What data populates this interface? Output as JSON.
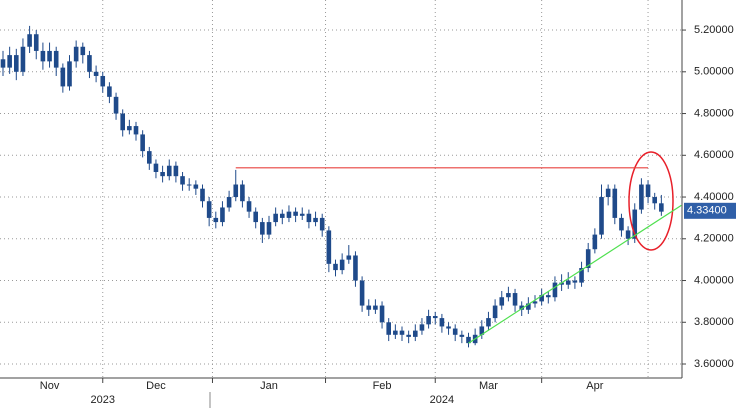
{
  "chart_data": {
    "type": "candlestick",
    "color": "#1f4a8a",
    "ylim": [
      3.533,
      5.344
    ],
    "yticks": [
      {
        "value": 3.6,
        "label": "3.60000"
      },
      {
        "value": 3.8,
        "label": "3.80000"
      },
      {
        "value": 4.0,
        "label": "4.00000"
      },
      {
        "value": 4.2,
        "label": "4.20000"
      },
      {
        "value": 4.4,
        "label": "4.40000"
      },
      {
        "value": 4.6,
        "label": "4.60000"
      },
      {
        "value": 4.8,
        "label": "4.80000"
      },
      {
        "value": 5.0,
        "label": "5.00000"
      },
      {
        "value": 5.2,
        "label": "5.20000"
      }
    ],
    "grid": true,
    "last_price": {
      "value": 4.334,
      "label": "4.33400",
      "color": "#2f5fa8"
    },
    "categories": [
      null,
      null,
      null,
      null,
      null,
      null,
      null,
      "Nov",
      null,
      null,
      null,
      null,
      null,
      null,
      null,
      null,
      null,
      null,
      null,
      null,
      null,
      null,
      null,
      "Dec",
      null,
      null,
      null,
      null,
      null,
      null,
      null,
      null,
      null,
      null,
      null,
      null,
      null,
      null,
      null,
      null,
      "Jan",
      null,
      null,
      null,
      null,
      null,
      null,
      null,
      null,
      null,
      null,
      null,
      null,
      null,
      null,
      null,
      null,
      "Feb",
      null,
      null,
      null,
      null,
      null,
      null,
      null,
      null,
      null,
      null,
      null,
      null,
      null,
      null,
      null,
      "Mar",
      null,
      null,
      null,
      null,
      null,
      null,
      null,
      null,
      null,
      null,
      null,
      null,
      null,
      null,
      null,
      "Apr",
      null,
      null,
      null,
      null,
      null,
      null,
      null,
      null,
      null,
      null
    ],
    "year_labels": [
      null,
      null,
      null,
      null,
      null,
      null,
      null,
      null,
      null,
      null,
      null,
      null,
      null,
      null,
      null,
      "2023",
      null,
      null,
      null,
      null,
      null,
      null,
      null,
      null,
      null,
      null,
      null,
      null,
      null,
      null,
      null,
      null,
      null,
      null,
      null,
      null,
      null,
      null,
      null,
      null,
      null,
      null,
      null,
      null,
      null,
      null,
      null,
      null,
      null,
      null,
      null,
      null,
      null,
      null,
      null,
      null,
      null,
      null,
      null,
      null,
      null,
      null,
      null,
      null,
      null,
      null,
      "2024",
      null,
      null,
      null,
      null,
      null,
      null,
      null,
      null,
      null,
      null,
      null,
      null,
      null,
      null,
      null,
      null,
      null,
      null,
      null,
      null,
      null,
      null,
      null,
      null,
      null,
      null,
      null,
      null,
      null,
      null,
      null,
      null,
      null
    ],
    "candles": [
      [
        5.06,
        5.1,
        4.98,
        5.02
      ],
      [
        5.02,
        5.12,
        4.99,
        5.08
      ],
      [
        5.08,
        5.11,
        4.96,
        5.0
      ],
      [
        5.0,
        5.16,
        4.98,
        5.12
      ],
      [
        5.12,
        5.22,
        5.09,
        5.18
      ],
      [
        5.18,
        5.2,
        5.06,
        5.1
      ],
      [
        5.1,
        5.14,
        5.01,
        5.05
      ],
      [
        5.05,
        5.14,
        5.02,
        5.1
      ],
      [
        5.1,
        5.12,
        4.98,
        5.02
      ],
      [
        5.02,
        5.04,
        4.9,
        4.93
      ],
      [
        4.93,
        5.08,
        4.91,
        5.05
      ],
      [
        5.05,
        5.15,
        5.02,
        5.12
      ],
      [
        5.12,
        5.14,
        5.04,
        5.08
      ],
      [
        5.08,
        5.1,
        4.97,
        5.0
      ],
      [
        5.0,
        5.03,
        4.95,
        4.98
      ],
      [
        4.98,
        5.0,
        4.9,
        4.93
      ],
      [
        4.93,
        4.95,
        4.85,
        4.88
      ],
      [
        4.88,
        4.9,
        4.77,
        4.8
      ],
      [
        4.8,
        4.82,
        4.69,
        4.72
      ],
      [
        4.72,
        4.77,
        4.7,
        4.74
      ],
      [
        4.74,
        4.76,
        4.67,
        4.7
      ],
      [
        4.7,
        4.72,
        4.59,
        4.62
      ],
      [
        4.62,
        4.64,
        4.53,
        4.56
      ],
      [
        4.56,
        4.58,
        4.49,
        4.52
      ],
      [
        4.52,
        4.55,
        4.47,
        4.5
      ],
      [
        4.5,
        4.58,
        4.48,
        4.55
      ],
      [
        4.55,
        4.57,
        4.47,
        4.5
      ],
      [
        4.5,
        4.52,
        4.43,
        4.46
      ],
      [
        4.46,
        4.49,
        4.43,
        4.46
      ],
      [
        4.46,
        4.48,
        4.41,
        4.44
      ],
      [
        4.44,
        4.46,
        4.35,
        4.38
      ],
      [
        4.38,
        4.4,
        4.26,
        4.3
      ],
      [
        4.3,
        4.33,
        4.25,
        4.28
      ],
      [
        4.28,
        4.38,
        4.26,
        4.35
      ],
      [
        4.35,
        4.43,
        4.33,
        4.4
      ],
      [
        4.4,
        4.53,
        4.38,
        4.46
      ],
      [
        4.46,
        4.48,
        4.35,
        4.38
      ],
      [
        4.38,
        4.4,
        4.3,
        4.33
      ],
      [
        4.33,
        4.35,
        4.25,
        4.28
      ],
      [
        4.28,
        4.3,
        4.18,
        4.22
      ],
      [
        4.22,
        4.31,
        4.2,
        4.28
      ],
      [
        4.28,
        4.35,
        4.26,
        4.32
      ],
      [
        4.32,
        4.34,
        4.27,
        4.3
      ],
      [
        4.3,
        4.36,
        4.28,
        4.33
      ],
      [
        4.33,
        4.35,
        4.28,
        4.31
      ],
      [
        4.31,
        4.35,
        4.29,
        4.32
      ],
      [
        4.32,
        4.34,
        4.25,
        4.28
      ],
      [
        4.28,
        4.33,
        4.26,
        4.3
      ],
      [
        4.3,
        4.32,
        4.21,
        4.24
      ],
      [
        4.24,
        4.26,
        4.04,
        4.08
      ],
      [
        4.08,
        4.1,
        4.02,
        4.05
      ],
      [
        4.05,
        4.13,
        4.03,
        4.1
      ],
      [
        4.1,
        4.17,
        4.08,
        4.12
      ],
      [
        4.12,
        4.14,
        3.97,
        4.0
      ],
      [
        4.0,
        4.02,
        3.85,
        3.88
      ],
      [
        3.88,
        3.91,
        3.83,
        3.86
      ],
      [
        3.86,
        3.91,
        3.84,
        3.88
      ],
      [
        3.88,
        3.9,
        3.77,
        3.8
      ],
      [
        3.8,
        3.82,
        3.71,
        3.74
      ],
      [
        3.74,
        3.79,
        3.72,
        3.76
      ],
      [
        3.76,
        3.78,
        3.71,
        3.74
      ],
      [
        3.74,
        3.76,
        3.7,
        3.73
      ],
      [
        3.73,
        3.79,
        3.71,
        3.76
      ],
      [
        3.76,
        3.82,
        3.74,
        3.79
      ],
      [
        3.79,
        3.86,
        3.77,
        3.83
      ],
      [
        3.83,
        3.85,
        3.79,
        3.82
      ],
      [
        3.82,
        3.84,
        3.75,
        3.78
      ],
      [
        3.78,
        3.8,
        3.74,
        3.77
      ],
      [
        3.77,
        3.79,
        3.71,
        3.74
      ],
      [
        3.74,
        3.76,
        3.7,
        3.73
      ],
      [
        3.73,
        3.75,
        3.68,
        3.7
      ],
      [
        3.7,
        3.77,
        3.69,
        3.74
      ],
      [
        3.74,
        3.81,
        3.72,
        3.78
      ],
      [
        3.78,
        3.85,
        3.76,
        3.82
      ],
      [
        3.82,
        3.91,
        3.8,
        3.88
      ],
      [
        3.88,
        3.95,
        3.86,
        3.92
      ],
      [
        3.92,
        3.97,
        3.9,
        3.94
      ],
      [
        3.94,
        3.96,
        3.85,
        3.88
      ],
      [
        3.88,
        3.9,
        3.83,
        3.86
      ],
      [
        3.86,
        3.92,
        3.84,
        3.89
      ],
      [
        3.89,
        3.93,
        3.87,
        3.9
      ],
      [
        3.9,
        3.96,
        3.88,
        3.93
      ],
      [
        3.93,
        3.95,
        3.89,
        3.92
      ],
      [
        3.92,
        4.02,
        3.9,
        3.99
      ],
      [
        3.99,
        4.03,
        3.95,
        3.98
      ],
      [
        3.98,
        4.04,
        3.96,
        4.0
      ],
      [
        4.0,
        4.02,
        3.96,
        3.99
      ],
      [
        3.99,
        4.09,
        3.97,
        4.06
      ],
      [
        4.06,
        4.18,
        4.04,
        4.15
      ],
      [
        4.15,
        4.25,
        4.13,
        4.22
      ],
      [
        4.22,
        4.46,
        4.2,
        4.4
      ],
      [
        4.4,
        4.46,
        4.36,
        4.44
      ],
      [
        4.44,
        4.46,
        4.27,
        4.3
      ],
      [
        4.3,
        4.32,
        4.21,
        4.24
      ],
      [
        4.24,
        4.26,
        4.17,
        4.2
      ],
      [
        4.2,
        4.37,
        4.18,
        4.34
      ],
      [
        4.34,
        4.49,
        4.32,
        4.46
      ],
      [
        4.46,
        4.48,
        4.37,
        4.4
      ],
      [
        4.4,
        4.42,
        4.34,
        4.37
      ],
      [
        4.37,
        4.41,
        4.31,
        4.33
      ]
    ],
    "annotations": [
      {
        "color": "#e8423f",
        "points": [
          [
            35,
            4.54
          ],
          [
            97,
            4.54
          ]
        ]
      },
      {
        "color": "#4fe04f",
        "points": [
          [
            70,
            3.7
          ],
          [
            102,
            4.36
          ]
        ]
      }
    ]
  }
}
